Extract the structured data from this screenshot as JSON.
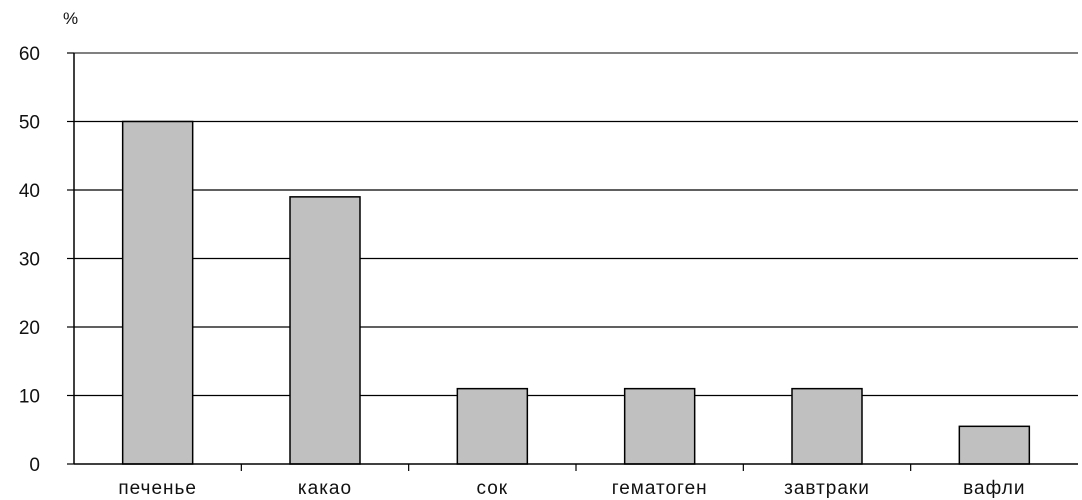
{
  "chart_data": {
    "type": "bar",
    "title": "",
    "xlabel": "",
    "ylabel": "%",
    "categories": [
      "печенье",
      "какао",
      "сок",
      "гематоген",
      "завтраки",
      "вафли"
    ],
    "values": [
      50,
      39,
      11,
      11,
      11,
      5.5
    ],
    "ylim": [
      0,
      60
    ],
    "yticks": [
      0,
      10,
      20,
      30,
      40,
      50,
      60
    ],
    "grid": true,
    "legend": "none",
    "colors": {
      "bar_fill": "#c0c0c0",
      "bar_stroke": "#000000",
      "grid": "#000000",
      "axis": "#000000"
    }
  }
}
